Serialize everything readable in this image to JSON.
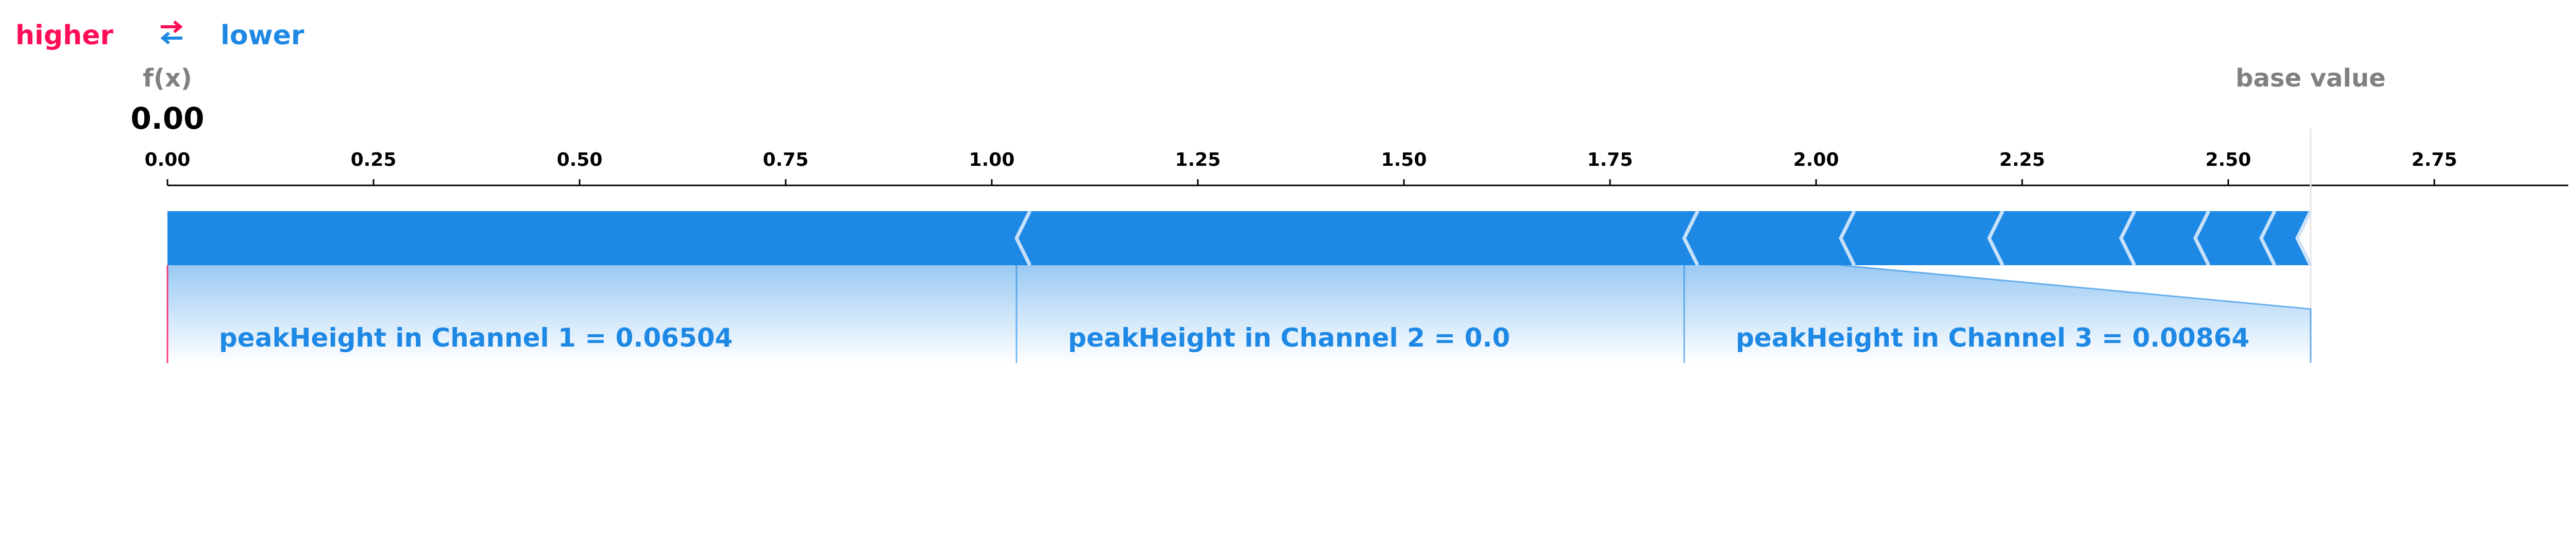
{
  "legend": {
    "higher_label": "higher",
    "lower_label": "lower",
    "arrows_icon": "swap-arrows-icon",
    "higher_color": "#ff0d57",
    "lower_color": "#1e88e5"
  },
  "output": {
    "label": "f(x)",
    "value_text": "0.00",
    "base_value_label": "base value"
  },
  "chart_data": {
    "type": "force",
    "title": "",
    "xlabel": "",
    "ylabel": "",
    "xlim": [
      0.0,
      2.9
    ],
    "x_ticks": [
      0.0,
      0.25,
      0.5,
      0.75,
      1.0,
      1.25,
      1.5,
      1.75,
      2.0,
      2.25,
      2.5,
      2.75
    ],
    "x_tick_labels": [
      "0.00",
      "0.25",
      "0.50",
      "0.75",
      "1.00",
      "1.25",
      "1.50",
      "1.75",
      "2.00",
      "2.25",
      "2.50",
      "2.75"
    ],
    "output_value": 0.0,
    "base_value": 2.6,
    "segment_boundaries": [
      0.0,
      1.03,
      1.84,
      2.03,
      2.21,
      2.37,
      2.46,
      2.54,
      2.6
    ],
    "features": [
      {
        "label": "peakHeight in Channel 1 = 0.06504",
        "start": 0.0,
        "end": 1.03
      },
      {
        "label": "peakHeight in Channel 2 = 0.0",
        "start": 1.03,
        "end": 1.84
      },
      {
        "label": "peakHeight in Channel 3 = 0.00864",
        "start": 1.84,
        "end": 2.03
      }
    ],
    "colors": {
      "negative": "#1e88e5",
      "positive": "#ff0d57",
      "axis": "#000000",
      "base_label": "#808080"
    }
  }
}
